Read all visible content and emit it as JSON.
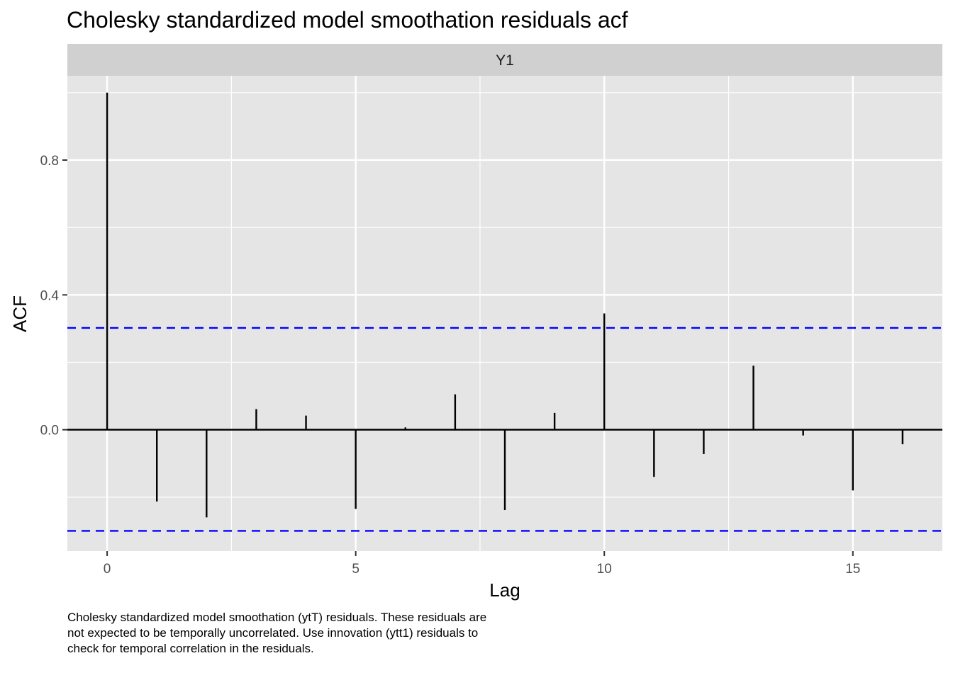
{
  "chart_data": {
    "type": "bar",
    "title": "Cholesky standardized model smoothation residuals acf",
    "facet": "Y1",
    "xlabel": "Lag",
    "ylabel": "ACF",
    "x": [
      0,
      1,
      2,
      3,
      4,
      5,
      6,
      7,
      8,
      9,
      10,
      11,
      12,
      13,
      14,
      15,
      16
    ],
    "values": [
      1.0,
      -0.213,
      -0.26,
      0.061,
      0.042,
      -0.235,
      0.007,
      0.105,
      -0.238,
      0.05,
      0.345,
      -0.14,
      -0.072,
      0.19,
      -0.017,
      -0.18,
      -0.043
    ],
    "conf_band": [
      0.302,
      -0.3
    ],
    "xlim": [
      -0.8,
      16.8
    ],
    "ylim": [
      -0.36,
      1.05
    ],
    "x_ticks": [
      0,
      5,
      10,
      15
    ],
    "x_tick_labels": [
      "0",
      "5",
      "10",
      "15"
    ],
    "y_ticks": [
      0.0,
      0.4,
      0.8
    ],
    "y_tick_labels": [
      "0.0",
      "0.4",
      "0.8"
    ],
    "grid": true,
    "colors": {
      "panel": "#e5e5e5",
      "strip": "#d0d0d0",
      "grid": "#ffffff",
      "bars": "#000000",
      "band": "#0000ff"
    }
  },
  "caption": "Cholesky standardized model smoothation (ytT) residuals. These residuals are not expected to be temporally uncorrelated. Use innovation (ytt1) residuals to check for temporal correlation in the residuals."
}
